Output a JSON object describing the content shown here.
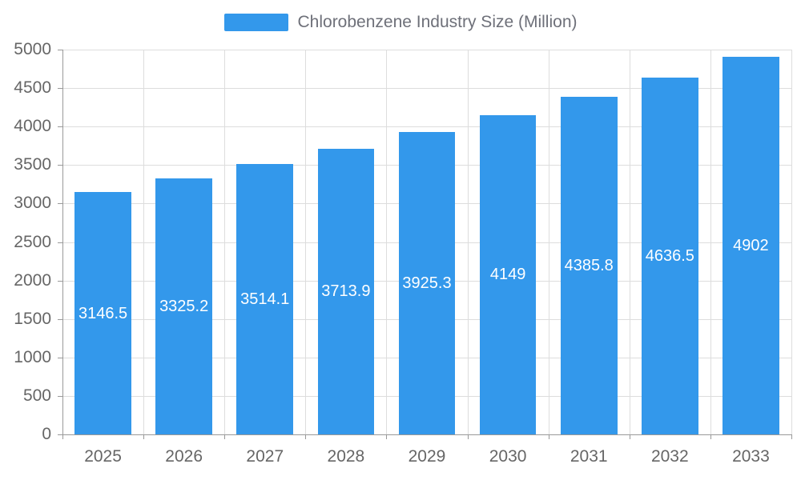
{
  "legend": {
    "label": "Chlorobenzene Industry Size (Million)",
    "swatch_color": "#3398EB"
  },
  "chart_data": {
    "type": "bar",
    "title": "Chlorobenzene Industry Size (Million)",
    "categories": [
      "2025",
      "2026",
      "2027",
      "2028",
      "2029",
      "2030",
      "2031",
      "2032",
      "2033"
    ],
    "values": [
      3146.5,
      3325.2,
      3514.1,
      3713.9,
      3925.3,
      4149,
      4385.8,
      4636.5,
      4902
    ],
    "labels": [
      "3146.5",
      "3325.2",
      "3514.1",
      "3713.9",
      "3925.3",
      "4149",
      "4385.8",
      "4636.5",
      "4902"
    ],
    "xlabel": "",
    "ylabel": "",
    "ylim": [
      0,
      5000
    ],
    "yticks": [
      0,
      500,
      1000,
      1500,
      2000,
      2500,
      3000,
      3500,
      4000,
      4500,
      5000
    ],
    "bar_color": "#3398EB",
    "label_color": "#ffffff",
    "grid": true,
    "legend_position": "top"
  }
}
